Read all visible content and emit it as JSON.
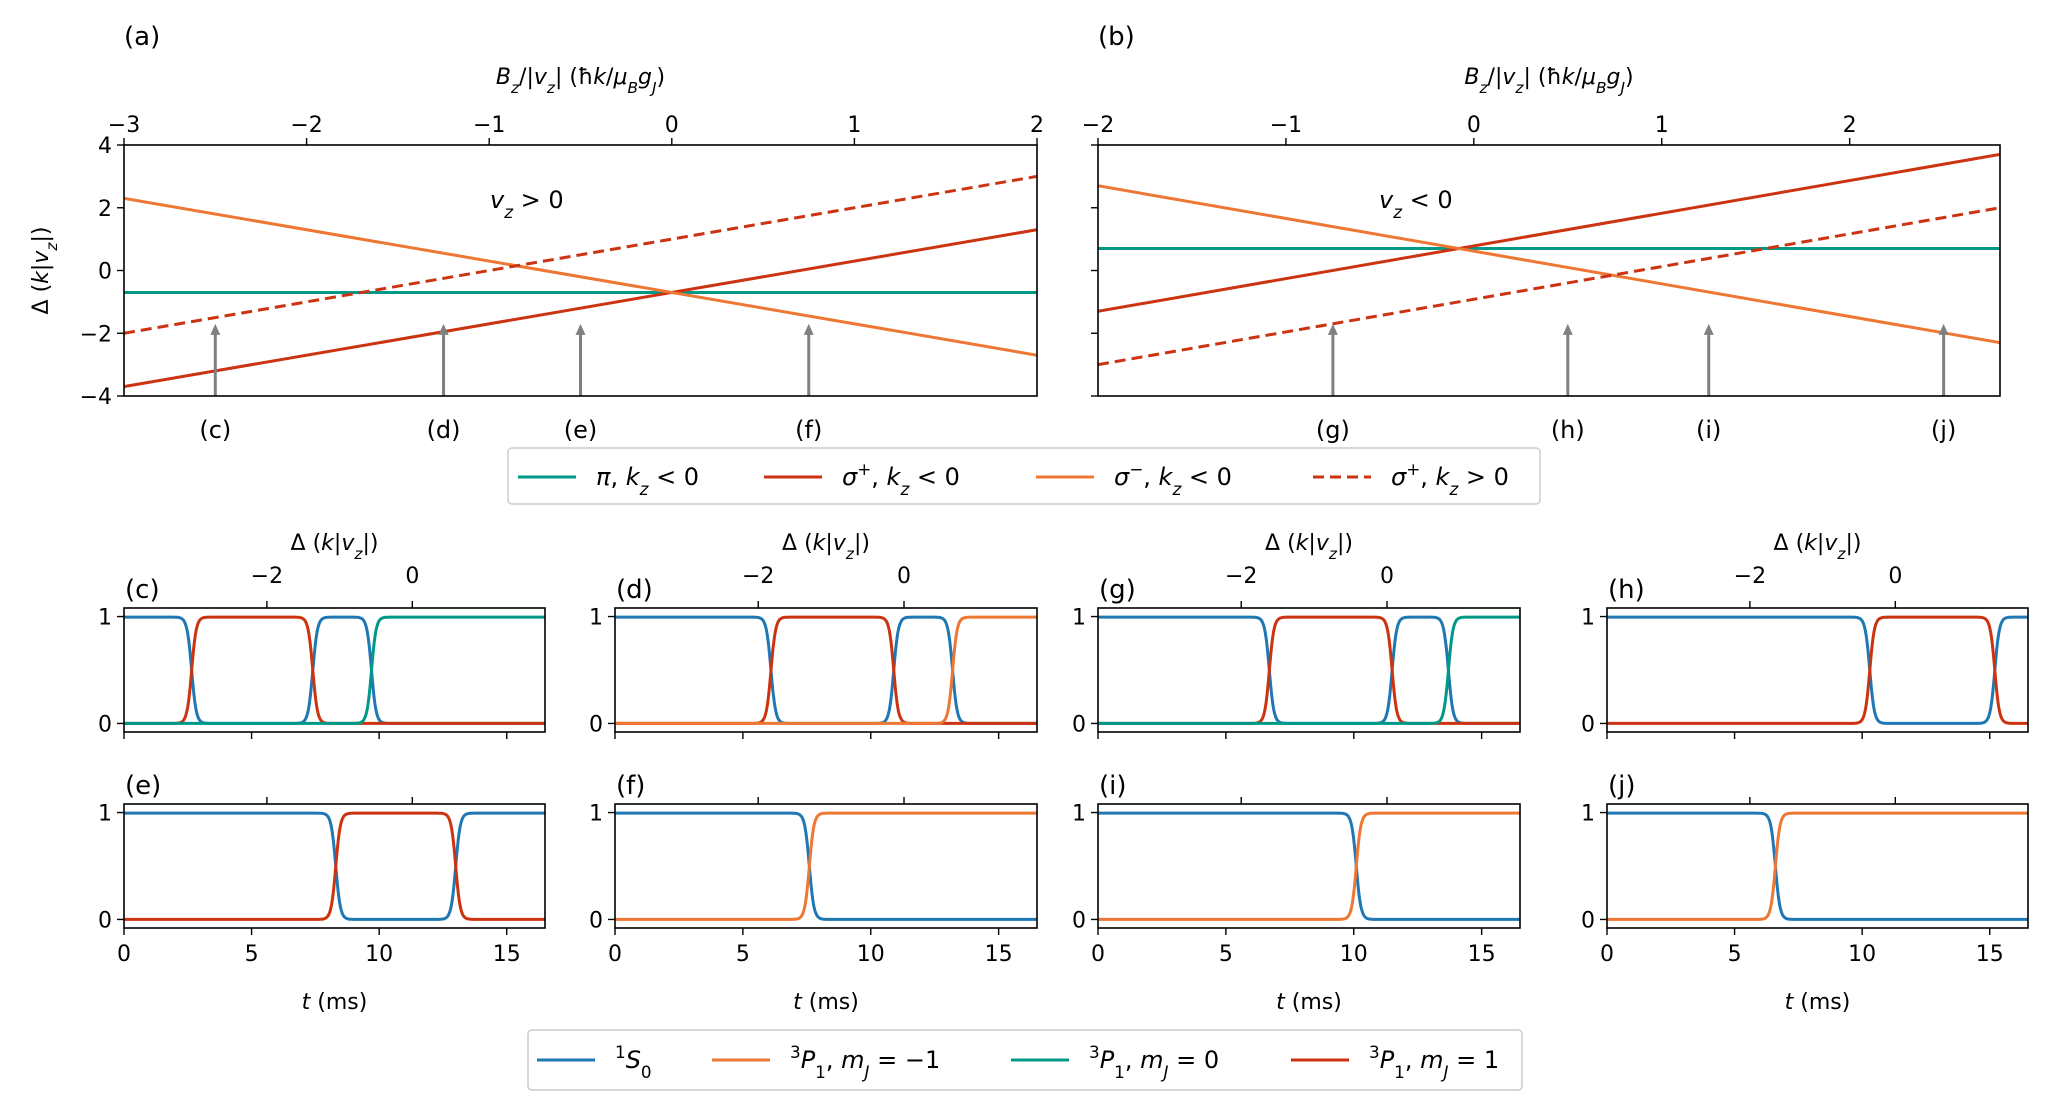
{
  "colors": {
    "blue": "#1f77b4",
    "orange": "#ee7733",
    "teal": "#009988",
    "red": "#cc3311",
    "arrow": "#808080"
  },
  "chart_data": {
    "panels_top": [
      {
        "panel": "(a)",
        "type": "line",
        "top_xlabel": "Bz/|vz| (ħk/μBgJ)",
        "ylabel": "Δ (k|vz|)",
        "xlim": [
          -3,
          2
        ],
        "ylim": [
          -4,
          4
        ],
        "xticks": [
          -3,
          -2,
          -1,
          0,
          1,
          2
        ],
        "xtick_labels": [
          "−3",
          "−2",
          "−1",
          "0",
          "1",
          "2"
        ],
        "yticks": [
          -4,
          -2,
          0,
          2,
          4
        ],
        "ytick_labels": [
          "−4",
          "−2",
          "0",
          "2",
          "4"
        ],
        "annotation": "vz > 0",
        "series": [
          {
            "name": "π, kz < 0",
            "color": "teal",
            "dash": false,
            "x": [
              -3,
              2
            ],
            "y": [
              -0.7,
              -0.7
            ]
          },
          {
            "name": "σ+, kz < 0",
            "color": "red",
            "dash": false,
            "x": [
              -3,
              2
            ],
            "y": [
              -3.7,
              1.3
            ]
          },
          {
            "name": "σ−, kz < 0",
            "color": "orange",
            "dash": false,
            "x": [
              -3,
              2
            ],
            "y": [
              2.3,
              -2.7
            ]
          },
          {
            "name": "σ+, kz > 0",
            "color": "red",
            "dash": true,
            "x": [
              -3,
              2
            ],
            "y": [
              -2.0,
              3.0
            ]
          }
        ],
        "arrows": [
          {
            "label": "(c)",
            "x": -2.5,
            "y_tip": -1.7
          },
          {
            "label": "(d)",
            "x": -1.25,
            "y_tip": -1.7
          },
          {
            "label": "(e)",
            "x": -0.5,
            "y_tip": -1.7
          },
          {
            "label": "(f)",
            "x": 0.75,
            "y_tip": -1.7
          }
        ]
      },
      {
        "panel": "(b)",
        "type": "line",
        "top_xlabel": "Bz/|vz| (ħk/μBgJ)",
        "xlim": [
          -2,
          2.8
        ],
        "ylim": [
          -4,
          4
        ],
        "xticks": [
          -2,
          -1,
          0,
          1,
          2
        ],
        "xtick_labels": [
          "−2",
          "−1",
          "0",
          "1",
          "2"
        ],
        "yticks": [
          -4,
          -2,
          0,
          2,
          4
        ],
        "annotation": "vz < 0",
        "series": [
          {
            "name": "π, kz < 0",
            "color": "teal",
            "dash": false,
            "x": [
              -2,
              2.8
            ],
            "y": [
              0.7,
              0.7
            ]
          },
          {
            "name": "σ+, kz < 0",
            "color": "red",
            "dash": false,
            "x": [
              -2,
              2.8
            ],
            "y": [
              -1.3,
              3.7
            ]
          },
          {
            "name": "σ−, kz < 0",
            "color": "orange",
            "dash": false,
            "x": [
              -2,
              2.8
            ],
            "y": [
              2.7,
              -2.3
            ]
          },
          {
            "name": "σ+, kz > 0",
            "color": "red",
            "dash": true,
            "x": [
              -2,
              2.8
            ],
            "y": [
              -3.0,
              2.0
            ]
          }
        ],
        "arrows": [
          {
            "label": "(g)",
            "x": -0.75,
            "y_tip": -1.7
          },
          {
            "label": "(h)",
            "x": 0.5,
            "y_tip": -1.7
          },
          {
            "label": "(i)",
            "x": 1.25,
            "y_tip": -1.7
          },
          {
            "label": "(j)",
            "x": 2.5,
            "y_tip": -1.7
          }
        ]
      }
    ],
    "legend_top": [
      {
        "label": "π, kz < 0",
        "color": "teal",
        "dash": false
      },
      {
        "label": "σ+, kz < 0",
        "color": "red",
        "dash": false
      },
      {
        "label": "σ−, kz < 0",
        "color": "orange",
        "dash": false
      },
      {
        "label": "σ+, kz > 0",
        "color": "red",
        "dash": true
      }
    ],
    "panels_bottom": {
      "type": "line",
      "xlim": [
        0,
        16.5
      ],
      "xticks": [
        0,
        5,
        10,
        15
      ],
      "xtick_labels": [
        "0",
        "5",
        "10",
        "15"
      ],
      "xlabel": "t (ms)",
      "ylim": [
        -0.08,
        1.08
      ],
      "yticks": [
        0,
        1
      ],
      "ytick_labels": [
        "0",
        "1"
      ],
      "top_xlabel": "Δ (k|vz|)",
      "top_ticks": [
        {
          "t": 5.6,
          "label": "−2"
        },
        {
          "t": 11.3,
          "label": "0"
        }
      ],
      "panels": [
        {
          "label": "(c)",
          "row": 0,
          "col": 0,
          "segments": [
            [
              "blue",
              0,
              2.65
            ],
            [
              "red",
              2.65,
              7.4
            ],
            [
              "blue",
              7.4,
              9.7
            ],
            [
              "teal",
              9.7,
              16.5
            ]
          ]
        },
        {
          "label": "(d)",
          "row": 0,
          "col": 1,
          "segments": [
            [
              "blue",
              0,
              6.1
            ],
            [
              "red",
              6.1,
              10.9
            ],
            [
              "blue",
              10.9,
              13.2
            ],
            [
              "orange",
              13.2,
              16.5
            ]
          ]
        },
        {
          "label": "(g)",
          "row": 0,
          "col": 2,
          "segments": [
            [
              "blue",
              0,
              6.7
            ],
            [
              "red",
              6.7,
              11.5
            ],
            [
              "blue",
              11.5,
              13.7
            ],
            [
              "teal",
              13.7,
              16.5
            ]
          ]
        },
        {
          "label": "(h)",
          "row": 0,
          "col": 3,
          "segments": [
            [
              "blue",
              0,
              10.3
            ],
            [
              "red",
              10.3,
              15.2
            ],
            [
              "blue",
              15.2,
              16.5
            ]
          ]
        },
        {
          "label": "(e)",
          "row": 1,
          "col": 0,
          "segments": [
            [
              "blue",
              0,
              8.3
            ],
            [
              "red",
              8.3,
              13.0
            ],
            [
              "blue",
              13.0,
              16.5
            ]
          ]
        },
        {
          "label": "(f)",
          "row": 1,
          "col": 1,
          "segments": [
            [
              "blue",
              0,
              7.6
            ],
            [
              "orange",
              7.6,
              16.5
            ]
          ]
        },
        {
          "label": "(i)",
          "row": 1,
          "col": 2,
          "segments": [
            [
              "blue",
              0,
              10.1
            ],
            [
              "orange",
              10.1,
              16.5
            ]
          ]
        },
        {
          "label": "(j)",
          "row": 1,
          "col": 3,
          "segments": [
            [
              "blue",
              0,
              6.6
            ],
            [
              "orange",
              6.6,
              16.5
            ]
          ]
        }
      ]
    },
    "legend_bottom": [
      {
        "label": "1S0",
        "color": "blue"
      },
      {
        "label": "3P1, mJ = −1",
        "color": "orange"
      },
      {
        "label": "3P1, mJ = 0",
        "color": "teal"
      },
      {
        "label": "3P1, mJ = 1",
        "color": "red"
      }
    ]
  }
}
